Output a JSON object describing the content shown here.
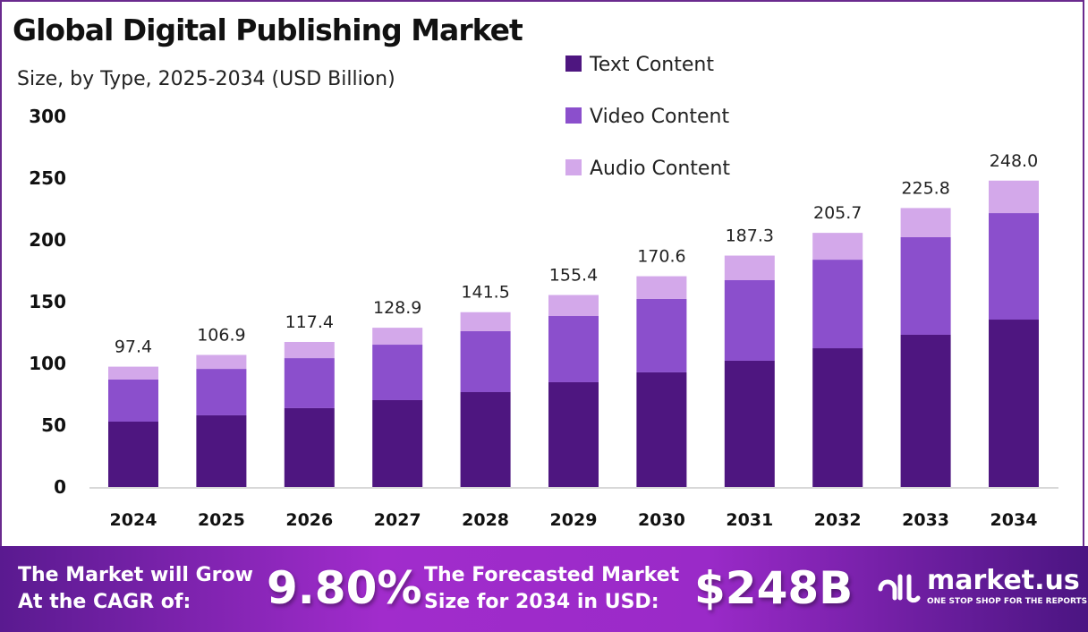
{
  "chart_data": {
    "type": "bar",
    "stacked": true,
    "title": "Global Digital Publishing Market",
    "subtitle": "Size, by Type, 2025-2034 (USD Billion)",
    "categories": [
      "2024",
      "2025",
      "2026",
      "2027",
      "2028",
      "2029",
      "2030",
      "2031",
      "2032",
      "2033",
      "2034"
    ],
    "series": [
      {
        "name": "Text Content",
        "color": "#4e1680",
        "values": [
          52.9,
          58.0,
          63.8,
          70.3,
          76.8,
          84.8,
          92.8,
          102.2,
          112.3,
          123.2,
          135.5
        ]
      },
      {
        "name": "Video Content",
        "color": "#8b4fcc",
        "values": [
          34.1,
          37.6,
          40.5,
          44.9,
          49.3,
          53.6,
          59.4,
          65.2,
          71.7,
          79.0,
          86.2
        ]
      },
      {
        "name": "Audio Content",
        "color": "#d3a8ea",
        "values": [
          10.4,
          11.3,
          13.1,
          13.7,
          15.4,
          17.0,
          18.4,
          19.9,
          21.7,
          23.6,
          26.3
        ]
      }
    ],
    "totals": [
      "97.4",
      "106.9",
      "117.4",
      "128.9",
      "141.5",
      "155.4",
      "170.6",
      "187.3",
      "205.7",
      "225.8",
      "248.0"
    ],
    "yticks": [
      0,
      50,
      100,
      150,
      200,
      250,
      300
    ],
    "ylim": [
      0,
      300
    ],
    "grid": false,
    "legend": "top-right"
  },
  "footer": {
    "cagr_label_1": "The Market will Grow",
    "cagr_label_2": "At the CAGR of:",
    "cagr_value": "9.80%",
    "forecast_label_1": "The Forecasted Market",
    "forecast_label_2": "Size for 2034 in USD:",
    "forecast_value": "$248B",
    "brand": "market.us",
    "brand_tagline": "ONE STOP SHOP FOR THE REPORTS"
  }
}
